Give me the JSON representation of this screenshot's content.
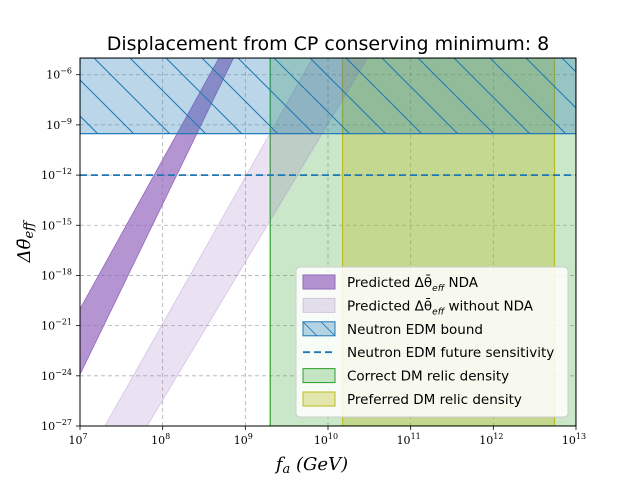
{
  "chart_data": {
    "type": "area",
    "title": "Displacement from CP conserving minimum: 8",
    "xlabel": "f_a (GeV)",
    "ylabel": "Δθ̄_eff",
    "x_scale": "log",
    "y_scale": "log",
    "xlim": [
      10000000.0,
      10000000000000.0
    ],
    "ylim": [
      1e-27,
      1e-05
    ],
    "grid": true,
    "legend_placement": "lower right",
    "x_ticks": [
      {
        "base": "10",
        "exp": "7"
      },
      {
        "base": "10",
        "exp": "8"
      },
      {
        "base": "10",
        "exp": "9"
      },
      {
        "base": "10",
        "exp": "10"
      },
      {
        "base": "10",
        "exp": "11"
      },
      {
        "base": "10",
        "exp": "12"
      },
      {
        "base": "10",
        "exp": "13"
      }
    ],
    "y_ticks": [
      {
        "base": "10",
        "exp": "−27"
      },
      {
        "base": "10",
        "exp": "−24"
      },
      {
        "base": "10",
        "exp": "−21"
      },
      {
        "base": "10",
        "exp": "−18"
      },
      {
        "base": "10",
        "exp": "−15"
      },
      {
        "base": "10",
        "exp": "−12"
      },
      {
        "base": "10",
        "exp": "−9"
      },
      {
        "base": "10",
        "exp": "−6"
      }
    ],
    "series": [
      {
        "name": "Predicted Δθ̄_eff NDA",
        "kind": "band",
        "color": "#9467bd",
        "opacity": 0.7,
        "x": [
          10000000.0,
          600000000.0
        ],
        "lower": [
          1.2e-24,
          4e-06
        ],
        "upper": [
          1e-20,
          1e-05
        ]
      },
      {
        "name": "Predicted Δθ̄_eff without NDA",
        "kind": "band",
        "color": "#9467bd",
        "opacity": 0.2,
        "x": [
          20000000.0,
          30000000000.0
        ],
        "lower": [
          1e-27,
          1e-05
        ],
        "upper": [
          1e-27,
          1e-05
        ],
        "lower_x_at_bottom": 20000000.0,
        "upper_x_at_bottom": 65000000.0,
        "lower_x_at_top": 30000000000.0,
        "upper_x_at_top": 6500000000.0
      },
      {
        "name": "Neutron EDM bound",
        "kind": "region",
        "color": "#1f77b4",
        "opacity": 0.3,
        "hatch": true,
        "y_range": [
          3e-10,
          1e-05
        ]
      },
      {
        "name": "Neutron EDM future sensitivity",
        "kind": "hline",
        "color": "#1f77b4",
        "dash": true,
        "y": 1e-12
      },
      {
        "name": "Correct DM relic density",
        "kind": "vregion",
        "color": "#2ca02c",
        "opacity": 0.25,
        "x_range": [
          2000000000.0,
          10000000000000.0
        ]
      },
      {
        "name": "Preferred DM relic density",
        "kind": "vregion",
        "color": "#bcbd22",
        "opacity": 0.35,
        "x_range": [
          15000000000.0,
          5500000000000.0
        ]
      }
    ],
    "legend": [
      {
        "label": "Predicted Δθ̄",
        "sub": "eff",
        "suffix": " NDA",
        "swatch": "band-nda"
      },
      {
        "label": "Predicted Δθ̄",
        "sub": "eff",
        "suffix": " without NDA",
        "swatch": "band-nonda"
      },
      {
        "label": "Neutron EDM bound",
        "sub": "",
        "suffix": "",
        "swatch": "edm-bound"
      },
      {
        "label": "Neutron EDM future sensitivity",
        "sub": "",
        "suffix": "",
        "swatch": "edm-future"
      },
      {
        "label": "Correct DM relic density",
        "sub": "",
        "suffix": "",
        "swatch": "dm-correct"
      },
      {
        "label": "Preferred DM relic density",
        "sub": "",
        "suffix": "",
        "swatch": "dm-preferred"
      }
    ]
  }
}
